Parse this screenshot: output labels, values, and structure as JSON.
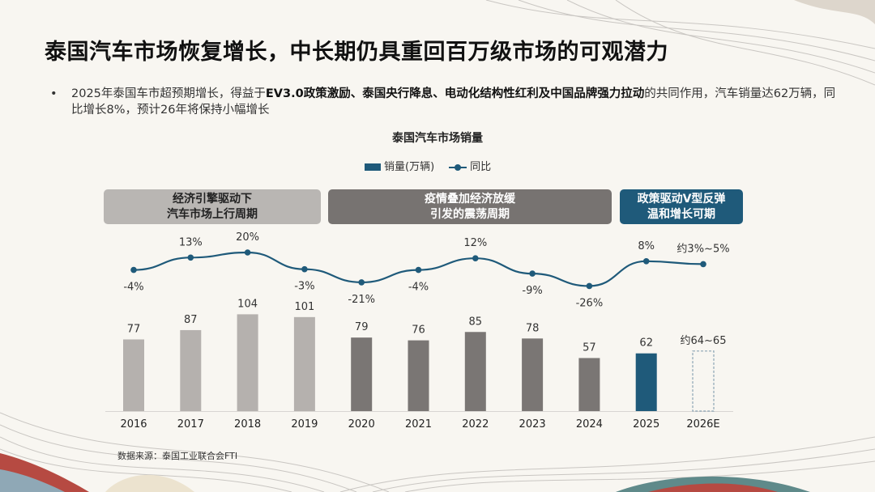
{
  "title": "泰国汽车市场恢复增长，中长期仍具重回百万级市场的可观潜力",
  "bullet": {
    "marker": "•",
    "part1": "2025年泰国车市超预期增长，得益于",
    "bold": "EV3.0政策激励、泰国央行降息、电动化结构性红利及中国品牌强力拉动",
    "part2": "的共同作用，汽车销量达62万辆，同比增长8%，预计26年将保持小幅增长"
  },
  "phases": [
    {
      "line1": "经济引擎驱动下",
      "line2": "汽车市场上行周期"
    },
    {
      "line1": "疫情叠加经济放缓",
      "line2": "引发的震荡周期"
    },
    {
      "line1": "政策驱动V型反弹",
      "line2": "温和增长可期"
    }
  ],
  "source": "数据来源：泰国工业联合会FTI",
  "chart_data": {
    "type": "bar+line",
    "title": "泰国汽车市场销量",
    "categories": [
      "2016",
      "2017",
      "2018",
      "2019",
      "2020",
      "2021",
      "2022",
      "2023",
      "2024",
      "2025",
      "2026E"
    ],
    "legend_placement": "top",
    "grid": false,
    "series": [
      {
        "name": "销量(万辆)",
        "type": "bar",
        "values": [
          77,
          87,
          104,
          101,
          79,
          76,
          85,
          78,
          57,
          62,
          null
        ],
        "labels": [
          "77",
          "87",
          "104",
          "101",
          "79",
          "76",
          "85",
          "78",
          "57",
          "62",
          "约64~65"
        ],
        "estimate_range": [
          64,
          65
        ],
        "colors": [
          "#b5b1ae",
          "#b5b1ae",
          "#b5b1ae",
          "#b5b1ae",
          "#7a7674",
          "#7a7674",
          "#7a7674",
          "#7a7674",
          "#7a7674",
          "#1f5a7a",
          "#8aa4b4"
        ]
      },
      {
        "name": "同比",
        "type": "line",
        "unit": "%",
        "values": [
          -4,
          13,
          20,
          -3,
          -21,
          -4,
          12,
          -9,
          -26,
          8,
          null
        ],
        "labels": [
          "-4%",
          "13%",
          "20%",
          "-3%",
          "-21%",
          "-4%",
          "12%",
          "-9%",
          "-26%",
          "8%",
          "约3%~5%"
        ],
        "estimate_range": [
          3,
          5
        ],
        "color": "#1f5a7a"
      }
    ]
  }
}
